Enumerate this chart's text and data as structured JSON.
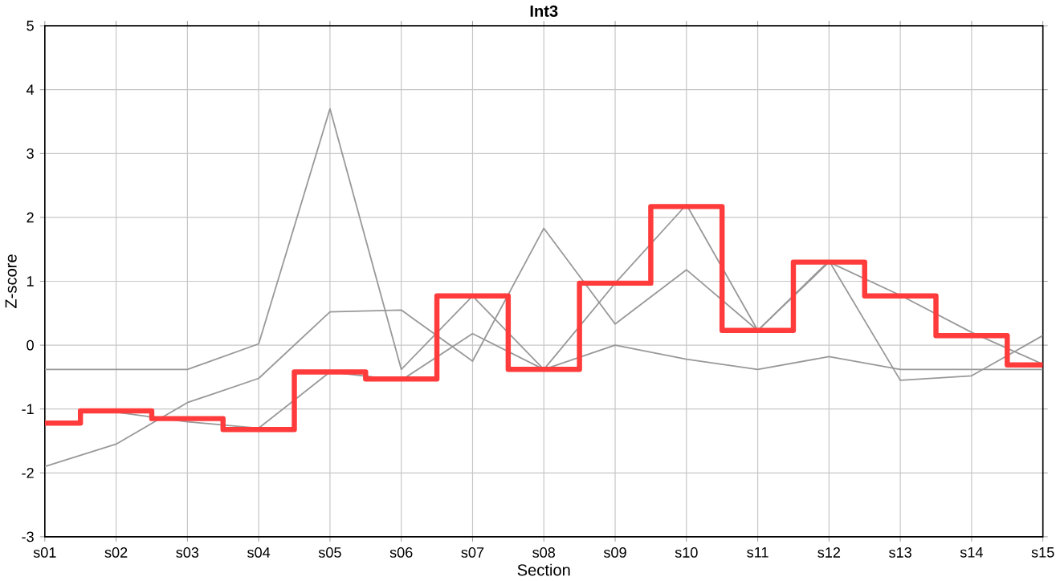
{
  "chart_data": {
    "type": "line",
    "title": "Int3",
    "xlabel": "Section",
    "ylabel": "Z-score",
    "categories": [
      "s01",
      "s02",
      "s03",
      "s04",
      "s05",
      "s06",
      "s07",
      "s08",
      "s09",
      "s10",
      "s11",
      "s12",
      "s13",
      "s14",
      "s15"
    ],
    "ylim": [
      -3,
      5
    ],
    "yticks": [
      -3,
      -2,
      -1,
      0,
      1,
      2,
      3,
      4,
      5
    ],
    "grid": true,
    "series": [
      {
        "color": "#999999",
        "values": [
          -0.38,
          -0.38,
          -0.38,
          0.02,
          3.7,
          -0.38,
          0.77,
          -0.38,
          0.97,
          2.2,
          0.23,
          1.3,
          0.78,
          0.2,
          -0.3
        ]
      },
      {
        "color": "#999999",
        "values": [
          -1.9,
          -1.55,
          -0.9,
          -0.52,
          0.52,
          0.55,
          -0.25,
          1.83,
          0.33,
          1.18,
          0.23,
          1.32,
          -0.55,
          -0.48,
          0.15
        ]
      },
      {
        "color": "#999999",
        "values": [
          null,
          -1.05,
          -1.2,
          -1.3,
          -0.42,
          -0.55,
          0.18,
          -0.38,
          0.0,
          -0.22,
          -0.38,
          -0.18,
          -0.38,
          -0.38,
          -0.38
        ]
      },
      {
        "type": "step",
        "color": "#ff3b3b",
        "values": [
          -1.22,
          -1.03,
          -1.15,
          -1.32,
          -0.42,
          -0.53,
          0.77,
          -0.38,
          0.97,
          2.17,
          0.23,
          1.3,
          0.77,
          0.15,
          -0.31
        ]
      }
    ]
  }
}
